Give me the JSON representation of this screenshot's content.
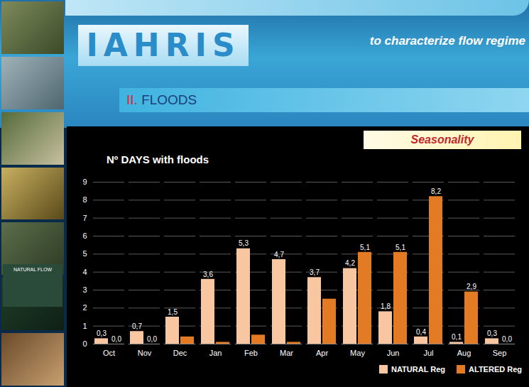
{
  "slide": {
    "logo": "IAHRIS",
    "subtitle": "to characterize flow regime",
    "section_number": "II.",
    "section": "FLOODS",
    "tag": "Seasonality",
    "side_label": "NATURAL FLOW"
  },
  "chart_data": {
    "type": "bar",
    "title": "Nº DAYS with floods",
    "categories": [
      "Oct",
      "Nov",
      "Dec",
      "Jan",
      "Feb",
      "Mar",
      "Apr",
      "May",
      "Jun",
      "Jul",
      "Aug",
      "Sep"
    ],
    "series": [
      {
        "name": "NATURAL Reg",
        "color": "#f8c6a0",
        "values": [
          0.3,
          0.7,
          1.5,
          3.6,
          5.3,
          4.7,
          3.7,
          4.2,
          1.8,
          0.4,
          0.1,
          0.3
        ],
        "value_labels": [
          "0,3",
          "0,7",
          "1,5",
          "3,6",
          "5,3",
          "4,7",
          "3,7",
          "4,2",
          "1,8",
          "0,4",
          "0,1",
          "0,3"
        ]
      },
      {
        "name": "ALTERED Reg",
        "color": "#e27b24",
        "values": [
          0.0,
          0.0,
          0.4,
          0.1,
          0.5,
          0.1,
          2.5,
          5.1,
          5.1,
          8.2,
          2.9,
          0.0
        ],
        "value_labels": [
          "0,0",
          "0,0",
          null,
          null,
          null,
          null,
          null,
          "5,1",
          "5,1",
          "8,2",
          "2,9",
          "0,0"
        ]
      }
    ],
    "ylim": [
      0,
      9
    ],
    "yticks": [
      0,
      1,
      2,
      3,
      4,
      5,
      6,
      7,
      8,
      9
    ],
    "grid": true,
    "data_labels": true,
    "legend": "bottom-right"
  }
}
